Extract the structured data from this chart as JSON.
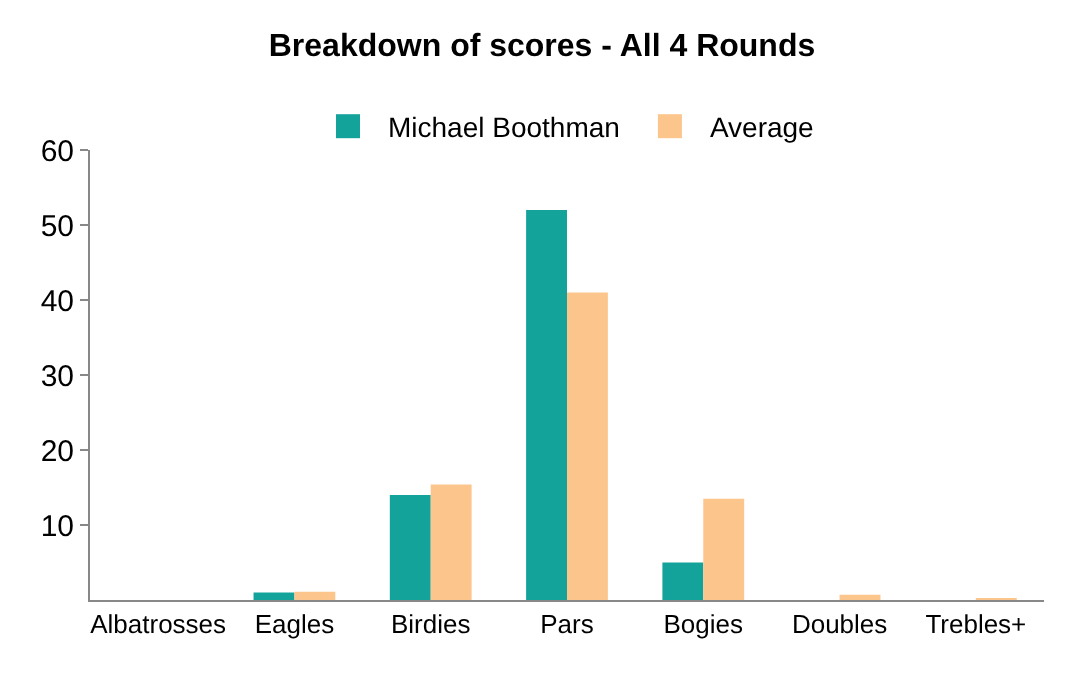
{
  "chart_data": {
    "type": "bar",
    "title": "Breakdown of scores - All 4 Rounds",
    "categories": [
      "Albatrosses",
      "Eagles",
      "Birdies",
      "Pars",
      "Bogies",
      "Doubles",
      "Trebles+"
    ],
    "series": [
      {
        "name": "Michael Boothman",
        "color": "#14a39a",
        "values": [
          0,
          1,
          14,
          52,
          5,
          0,
          0
        ]
      },
      {
        "name": "Average",
        "color": "#fcc58c",
        "values": [
          0,
          1.1,
          15.4,
          41,
          13.5,
          0.7,
          0.2
        ]
      }
    ],
    "ylim": [
      0,
      60
    ],
    "yticks": [
      10,
      20,
      30,
      40,
      50,
      60
    ],
    "legend": "top"
  }
}
